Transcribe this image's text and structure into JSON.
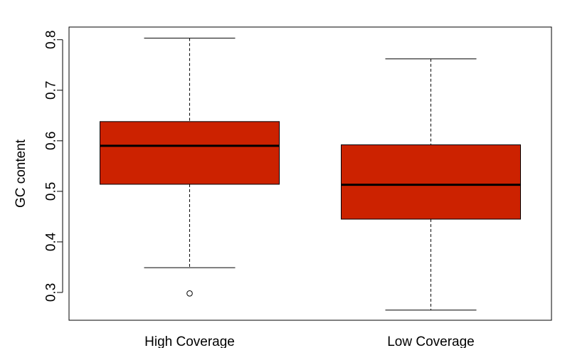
{
  "chart_data": {
    "type": "boxplot",
    "title": "",
    "xlabel": "",
    "ylabel": "GC content",
    "ylim": [
      0.245,
      0.825
    ],
    "yticks": [
      0.3,
      0.4,
      0.5,
      0.6,
      0.7,
      0.8
    ],
    "grid": false,
    "box_color": "#cc2200",
    "categories": [
      "High Coverage",
      "Low Coverage"
    ],
    "boxes": [
      {
        "category": "High Coverage",
        "whisker_low": 0.349,
        "q1": 0.514,
        "median": 0.59,
        "q3": 0.638,
        "whisker_high": 0.803,
        "outliers": [
          0.298
        ]
      },
      {
        "category": "Low Coverage",
        "whisker_low": 0.265,
        "q1": 0.445,
        "median": 0.513,
        "q3": 0.592,
        "whisker_high": 0.762,
        "outliers": []
      }
    ]
  }
}
